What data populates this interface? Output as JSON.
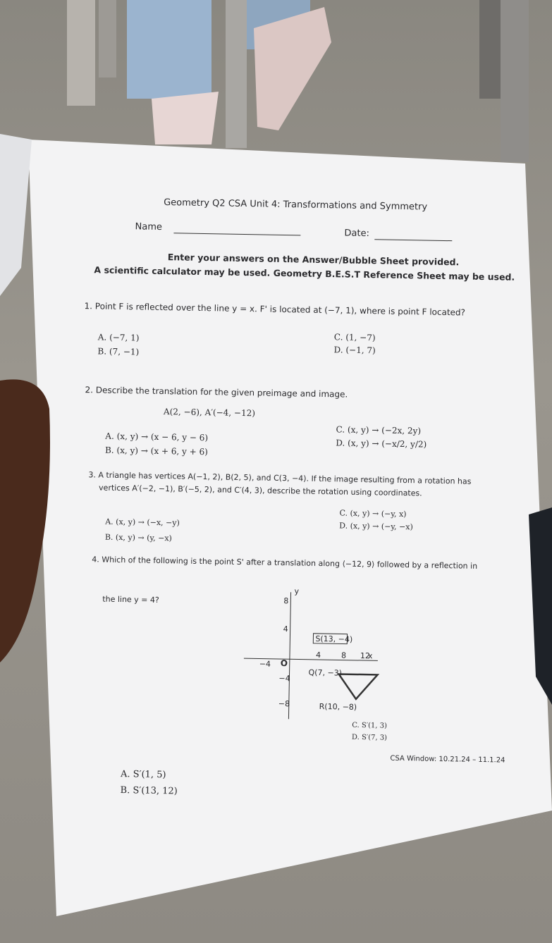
{
  "header": {
    "title": "Geometry Q2 CSA Unit 4: Transformations and Symmetry",
    "name_label": "Name",
    "date_label": "Date:"
  },
  "instructions": [
    "Enter your answers on the Answer/Bubble Sheet provided.",
    "A scientific calculator may be used. Geometry B.E.S.T Reference Sheet may be used."
  ],
  "questions": [
    {
      "stem": "1.  Point F is reflected over the line y = x. F' is located at (−7, 1), where is point F located?",
      "options": [
        {
          "letter": "A.",
          "text": "(−7, 1)"
        },
        {
          "letter": "B.",
          "text": "(7, −1)"
        },
        {
          "letter": "C.",
          "text": "(1, −7)"
        },
        {
          "letter": "D.",
          "text": "(−1, 7)"
        }
      ]
    },
    {
      "stem": "2.  Describe the translation for the given preimage and image.",
      "given": "A(2, −6), A′(−4, −12)",
      "options": [
        {
          "letter": "A.",
          "text": "(x, y) → (x − 6, y − 6)"
        },
        {
          "letter": "B.",
          "text": "(x, y) → (x + 6, y + 6)"
        },
        {
          "letter": "C.",
          "text": "(x, y) → (−2x, 2y)"
        },
        {
          "letter": "D.",
          "text": "(x, y) → (−x/2, y/2)"
        }
      ]
    },
    {
      "stem": "3.  A triangle has vertices A(−1, 2), B(2, 5), and C(3, −4). If the image resulting from a rotation has",
      "stem_line2": "vertices A′(−2, −1), B′(−5, 2), and C′(4, 3), describe the rotation using coordinates.",
      "options": [
        {
          "letter": "A.",
          "text": "(x, y) → (−x, −y)"
        },
        {
          "letter": "B.",
          "text": "(x, y) → (y, −x)"
        },
        {
          "letter": "C.",
          "text": "(x, y) → (−y, x)"
        },
        {
          "letter": "D.",
          "text": "(x, y) → (−y, −x)"
        }
      ]
    },
    {
      "stem": "4.  Which of the following is the point S' after a translation along ⟨−12, 9⟩ followed by a reflection in",
      "stem_line2": "the line y = 4?",
      "graph": {
        "y_axis": "y",
        "x_axis": "x",
        "labels": [
          "8",
          "4",
          "−4",
          "−8",
          "−4",
          "4",
          "8",
          "12"
        ],
        "origin": "O",
        "points": [
          "S(13, −4)",
          "Q(7, −3)",
          "R(10, −8)"
        ]
      },
      "options": [
        {
          "letter": "A.",
          "text": "S′(1, 5)"
        },
        {
          "letter": "B.",
          "text": "S′(13, 12)"
        },
        {
          "letter": "C.",
          "text": "S′(1, 3)"
        },
        {
          "letter": "D.",
          "text": "S′(7, 3)"
        }
      ]
    }
  ],
  "footer": "CSA Window: 10.21.24 – 11.1.24"
}
